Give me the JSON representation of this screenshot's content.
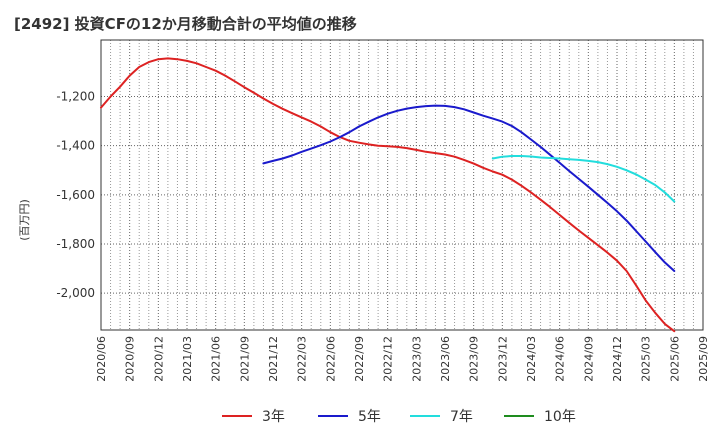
{
  "chart_data": {
    "type": "line",
    "title": "[2492]  投資CFの12か月移動合計の平均値の推移",
    "xlabel": "",
    "ylabel": "(百万円)",
    "x_ticks": [
      "2020/06",
      "2020/09",
      "2020/12",
      "2021/03",
      "2021/06",
      "2021/09",
      "2021/12",
      "2022/03",
      "2022/06",
      "2022/09",
      "2022/12",
      "2023/03",
      "2023/06",
      "2023/09",
      "2023/12",
      "2024/03",
      "2024/06",
      "2024/09",
      "2024/12",
      "2025/03",
      "2025/06",
      "2025/09"
    ],
    "y_ticks": [
      -1200,
      -1400,
      -1600,
      -1800,
      -2000
    ],
    "y_tick_labels": [
      "-1,200",
      "-1,400",
      "-1,600",
      "-1,800",
      "-2,000"
    ],
    "ylim": [
      -2150,
      -970
    ],
    "grid": true,
    "legend_position": "bottom",
    "series": [
      {
        "name": "3年",
        "color": "#dd2222",
        "x": [
          "2020/06",
          "2020/07",
          "2020/08",
          "2020/09",
          "2020/10",
          "2020/11",
          "2020/12",
          "2021/01",
          "2021/02",
          "2021/03",
          "2021/04",
          "2021/05",
          "2021/06",
          "2021/07",
          "2021/08",
          "2021/09",
          "2021/10",
          "2021/11",
          "2021/12",
          "2022/01",
          "2022/02",
          "2022/03",
          "2022/04",
          "2022/05",
          "2022/06",
          "2022/07",
          "2022/08",
          "2022/09",
          "2022/10",
          "2022/11",
          "2022/12",
          "2023/01",
          "2023/02",
          "2023/03",
          "2023/04",
          "2023/05",
          "2023/06",
          "2023/07",
          "2023/08",
          "2023/09",
          "2023/10",
          "2023/11",
          "2023/12",
          "2024/01",
          "2024/02",
          "2024/03",
          "2024/04",
          "2024/05",
          "2024/06",
          "2024/07",
          "2024/08",
          "2024/09",
          "2024/10",
          "2024/11",
          "2024/12",
          "2025/01",
          "2025/02",
          "2025/03",
          "2025/04",
          "2025/05",
          "2025/06"
        ],
        "values": [
          -1245,
          -1200,
          -1160,
          -1115,
          -1080,
          -1060,
          -1048,
          -1045,
          -1048,
          -1055,
          -1065,
          -1080,
          -1095,
          -1115,
          -1138,
          -1162,
          -1185,
          -1208,
          -1230,
          -1250,
          -1268,
          -1285,
          -1302,
          -1322,
          -1345,
          -1365,
          -1380,
          -1388,
          -1395,
          -1400,
          -1402,
          -1405,
          -1410,
          -1417,
          -1425,
          -1430,
          -1436,
          -1445,
          -1458,
          -1473,
          -1490,
          -1505,
          -1518,
          -1538,
          -1563,
          -1590,
          -1620,
          -1650,
          -1682,
          -1714,
          -1745,
          -1775,
          -1805,
          -1835,
          -1868,
          -1910,
          -1968,
          -2030,
          -2080,
          -2125,
          -2155
        ]
      },
      {
        "name": "5年",
        "color": "#1a1acc",
        "x": [
          "2021/11",
          "2021/12",
          "2022/01",
          "2022/02",
          "2022/03",
          "2022/04",
          "2022/05",
          "2022/06",
          "2022/07",
          "2022/08",
          "2022/09",
          "2022/10",
          "2022/11",
          "2022/12",
          "2023/01",
          "2023/02",
          "2023/03",
          "2023/04",
          "2023/05",
          "2023/06",
          "2023/07",
          "2023/08",
          "2023/09",
          "2023/10",
          "2023/11",
          "2023/12",
          "2024/01",
          "2024/02",
          "2024/03",
          "2024/04",
          "2024/05",
          "2024/06",
          "2024/07",
          "2024/08",
          "2024/09",
          "2024/10",
          "2024/11",
          "2024/12",
          "2025/01",
          "2025/02",
          "2025/03",
          "2025/04",
          "2025/05",
          "2025/06"
        ],
        "values": [
          -1472,
          -1462,
          -1452,
          -1440,
          -1425,
          -1412,
          -1398,
          -1383,
          -1365,
          -1345,
          -1322,
          -1303,
          -1285,
          -1270,
          -1258,
          -1249,
          -1243,
          -1239,
          -1237,
          -1238,
          -1243,
          -1252,
          -1265,
          -1278,
          -1290,
          -1302,
          -1320,
          -1345,
          -1375,
          -1405,
          -1437,
          -1470,
          -1503,
          -1535,
          -1567,
          -1600,
          -1633,
          -1667,
          -1705,
          -1747,
          -1790,
          -1833,
          -1875,
          -1910
        ]
      },
      {
        "name": "7年",
        "color": "#22dddd",
        "x": [
          "2023/11",
          "2023/12",
          "2024/01",
          "2024/02",
          "2024/03",
          "2024/04",
          "2024/05",
          "2024/06",
          "2024/07",
          "2024/08",
          "2024/09",
          "2024/10",
          "2024/11",
          "2024/12",
          "2025/01",
          "2025/02",
          "2025/03",
          "2025/04",
          "2025/05",
          "2025/06"
        ],
        "values": [
          -1452,
          -1445,
          -1442,
          -1442,
          -1444,
          -1448,
          -1450,
          -1452,
          -1455,
          -1458,
          -1462,
          -1467,
          -1475,
          -1486,
          -1500,
          -1517,
          -1538,
          -1560,
          -1590,
          -1627
        ]
      },
      {
        "name": "10年",
        "color": "#1e8c1e",
        "x": [],
        "values": []
      }
    ]
  }
}
